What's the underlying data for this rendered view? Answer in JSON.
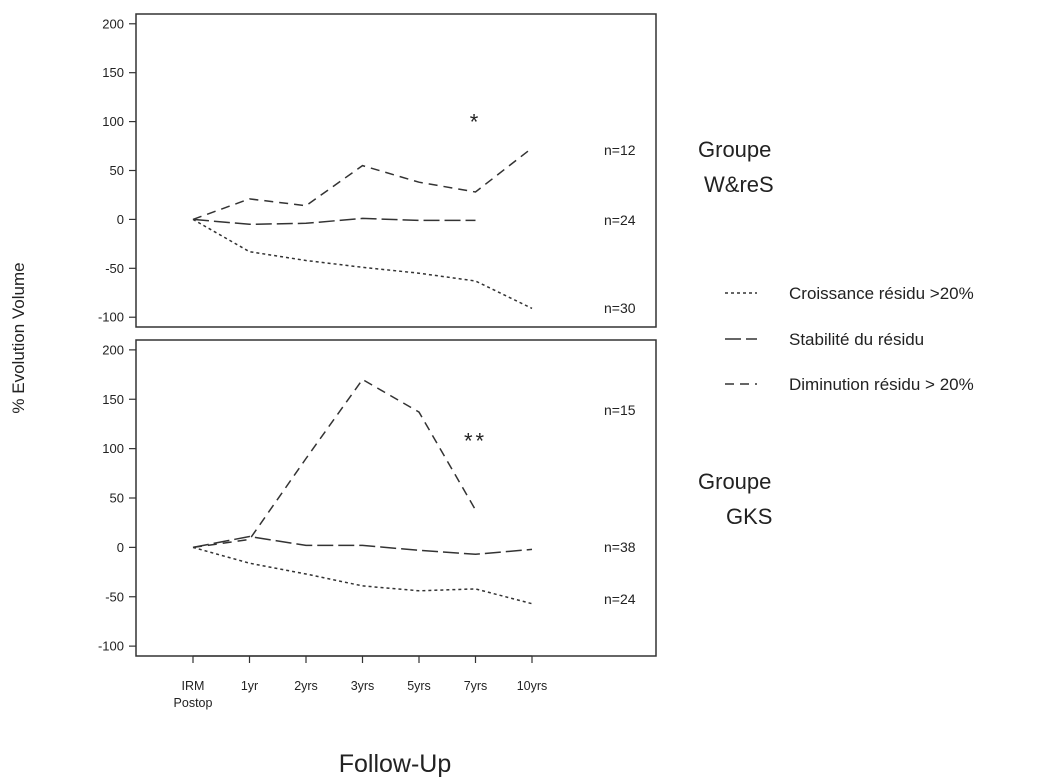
{
  "chart_data": {
    "type": "line",
    "x": [
      "IRM Postop",
      "1yr",
      "2yrs",
      "3yrs",
      "5yrs",
      "7yrs",
      "10yrs"
    ],
    "x_tick_labels": [
      [
        "IRM",
        "Postop"
      ],
      [
        "1yr"
      ],
      [
        "2yrs"
      ],
      [
        "3yrs"
      ],
      [
        "5yrs"
      ],
      [
        "7yrs"
      ],
      [
        "10yrs"
      ]
    ],
    "xlabel": "Follow-Up",
    "ylabel": "% Evolution Volume",
    "ylim": [
      -110,
      210
    ],
    "yticks": [
      -100,
      -50,
      0,
      50,
      100,
      150,
      200
    ],
    "grid": false,
    "legend_position": "right",
    "legend": [
      {
        "label": "Croissance résidu >20%",
        "style": "dotted"
      },
      {
        "label": "Stabilité du résidu",
        "style": "longdash"
      },
      {
        "label": "Diminution résidu > 20%",
        "style": "dashed"
      }
    ],
    "panels": [
      {
        "group_label": [
          "Groupe",
          "W&reS"
        ],
        "annotation": "*",
        "annotation_at": {
          "x": "7yrs",
          "y": 92
        },
        "series": [
          {
            "style": "dashed",
            "n_label": "n=12",
            "values": [
              0,
              21,
              14,
              55,
              38,
              28,
              73
            ]
          },
          {
            "style": "longdash",
            "n_label": "n=24",
            "values": [
              0,
              -5,
              -4,
              1,
              -1,
              -1,
              null
            ]
          },
          {
            "style": "dotted",
            "n_label": "n=30",
            "values": [
              0,
              -33,
              -42,
              -49,
              -55,
              -63,
              -91
            ]
          }
        ]
      },
      {
        "group_label": [
          "Groupe",
          "GKS"
        ],
        "annotation": "**",
        "annotation_at": {
          "x": "7yrs",
          "y": 100
        },
        "series": [
          {
            "style": "dashed",
            "n_label": "n=15",
            "values": [
              0,
              8,
              90,
              170,
              137,
              38,
              null
            ]
          },
          {
            "style": "longdash",
            "n_label": "n=38",
            "values": [
              0,
              11,
              2,
              2,
              -3,
              -7,
              -2
            ]
          },
          {
            "style": "dotted",
            "n_label": "n=24",
            "values": [
              0,
              -16,
              -27,
              -39,
              -44,
              -42,
              -57
            ]
          }
        ]
      }
    ]
  }
}
